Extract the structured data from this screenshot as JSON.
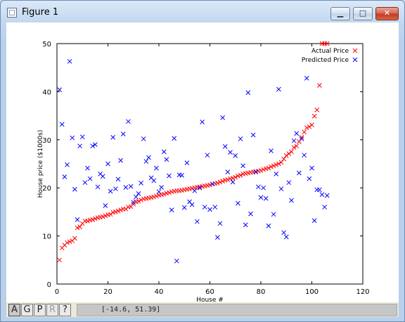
{
  "window": {
    "title": "Figure 1",
    "minimize_icon": "minimize-icon",
    "maximize_icon": "maximize-icon",
    "close_icon": "close-icon"
  },
  "toolbar": {
    "buttons": [
      {
        "label": "A",
        "state": "selected"
      },
      {
        "label": "G",
        "state": "normal"
      },
      {
        "label": "P",
        "state": "normal"
      },
      {
        "label": "R",
        "state": "disabled"
      },
      {
        "label": "?",
        "state": "normal"
      }
    ],
    "coordinates": "[-14.6, 51.39]"
  },
  "chart_data": {
    "type": "scatter",
    "title": "",
    "xlabel": "House #",
    "ylabel": "House price ($1000s)",
    "xlim": [
      0,
      120
    ],
    "ylim": [
      0,
      50
    ],
    "xticks": [
      0,
      20,
      40,
      60,
      80,
      100,
      120
    ],
    "yticks": [
      0,
      10,
      20,
      30,
      40,
      50
    ],
    "grid": false,
    "legend_position": "top-right",
    "series": [
      {
        "name": "Actual Price",
        "marker": "x",
        "color": "#ff0000",
        "x": [
          1,
          2,
          3,
          4,
          5,
          6,
          7,
          8,
          9,
          10,
          11,
          12,
          13,
          14,
          15,
          16,
          17,
          18,
          19,
          20,
          21,
          22,
          23,
          24,
          25,
          26,
          27,
          28,
          29,
          30,
          31,
          32,
          33,
          34,
          35,
          36,
          37,
          38,
          39,
          40,
          41,
          42,
          43,
          44,
          45,
          46,
          47,
          48,
          49,
          50,
          51,
          52,
          53,
          54,
          55,
          56,
          57,
          58,
          59,
          60,
          61,
          62,
          63,
          64,
          65,
          66,
          67,
          68,
          69,
          70,
          71,
          72,
          73,
          74,
          75,
          76,
          77,
          78,
          79,
          80,
          81,
          82,
          83,
          84,
          85,
          86,
          87,
          88,
          89,
          90,
          91,
          92,
          93,
          94,
          95,
          96,
          97,
          98,
          99,
          100,
          101,
          102,
          103,
          104,
          105,
          106
        ],
        "y": [
          5.0,
          7.5,
          8.1,
          8.6,
          8.8,
          9.0,
          9.5,
          11.7,
          11.9,
          12.6,
          13.1,
          13.1,
          13.3,
          13.4,
          13.6,
          13.8,
          13.9,
          14.0,
          14.2,
          14.4,
          14.5,
          14.9,
          15.0,
          15.2,
          15.4,
          15.6,
          15.6,
          16.0,
          16.1,
          16.6,
          17.1,
          17.2,
          17.5,
          17.7,
          17.8,
          17.9,
          18.0,
          18.1,
          18.3,
          18.5,
          18.6,
          18.7,
          18.9,
          19.0,
          19.2,
          19.3,
          19.4,
          19.4,
          19.5,
          19.6,
          19.7,
          19.8,
          19.9,
          20.0,
          20.1,
          20.2,
          20.3,
          20.4,
          20.5,
          20.6,
          20.8,
          20.9,
          21.0,
          21.2,
          21.4,
          21.6,
          21.7,
          21.9,
          22.0,
          22.2,
          22.5,
          22.6,
          22.9,
          23.0,
          23.1,
          23.2,
          23.3,
          23.4,
          23.5,
          23.6,
          23.8,
          24.0,
          24.1,
          24.4,
          24.6,
          24.8,
          25.0,
          25.3,
          26.0,
          26.7,
          27.1,
          27.5,
          28.4,
          28.7,
          29.6,
          30.5,
          31.6,
          32.5,
          32.7,
          33.1,
          34.9,
          36.2,
          41.3,
          50.0,
          50.0,
          50.0
        ]
      },
      {
        "name": "Predicted Price",
        "marker": "x",
        "color": "#0000ff",
        "x": [
          1,
          2,
          3,
          4,
          5,
          6,
          7,
          8,
          9,
          10,
          11,
          12,
          13,
          14,
          15,
          16,
          17,
          18,
          19,
          20,
          21,
          22,
          23,
          24,
          25,
          26,
          27,
          28,
          29,
          30,
          31,
          32,
          33,
          34,
          35,
          36,
          37,
          38,
          39,
          40,
          41,
          42,
          43,
          44,
          45,
          46,
          47,
          48,
          49,
          50,
          51,
          52,
          53,
          54,
          55,
          56,
          57,
          58,
          59,
          60,
          61,
          62,
          63,
          64,
          65,
          66,
          67,
          68,
          69,
          70,
          71,
          72,
          73,
          74,
          75,
          76,
          77,
          78,
          79,
          80,
          81,
          82,
          83,
          84,
          85,
          86,
          87,
          88,
          89,
          90,
          91,
          92,
          93,
          94,
          95,
          96,
          97,
          98,
          99,
          100,
          101,
          102,
          103,
          104,
          105,
          106
        ],
        "y": [
          40.4,
          33.2,
          22.3,
          24.8,
          46.3,
          30.4,
          19.7,
          13.4,
          28.7,
          30.6,
          21.1,
          24.1,
          21.9,
          28.7,
          29.0,
          20.2,
          22.9,
          22.4,
          16.3,
          25.0,
          19.3,
          30.5,
          19.8,
          21.8,
          25.7,
          31.2,
          20.1,
          33.8,
          20.3,
          17.0,
          18.1,
          18.8,
          21.0,
          30.2,
          25.5,
          26.3,
          22.1,
          21.5,
          24.1,
          19.2,
          20.1,
          27.5,
          25.9,
          22.5,
          15.4,
          30.3,
          4.8,
          22.7,
          22.6,
          15.9,
          25.2,
          17.1,
          16.5,
          19.4,
          13.0,
          20.0,
          33.7,
          16.0,
          26.8,
          15.5,
          20.8,
          16.0,
          9.7,
          12.6,
          34.6,
          28.6,
          23.3,
          27.4,
          21.2,
          26.7,
          16.8,
          30.2,
          24.6,
          12.3,
          39.8,
          14.6,
          31.0,
          23.3,
          20.2,
          18.0,
          20.0,
          17.8,
          12.1,
          27.7,
          14.5,
          22.9,
          40.5,
          19.8,
          10.7,
          9.8,
          21.1,
          17.4,
          29.8,
          31.3,
          23.1,
          30.2,
          26.8,
          42.8,
          21.9,
          24.1,
          13.2,
          19.6,
          19.6,
          18.6,
          16.0,
          18.4
        ]
      }
    ]
  }
}
